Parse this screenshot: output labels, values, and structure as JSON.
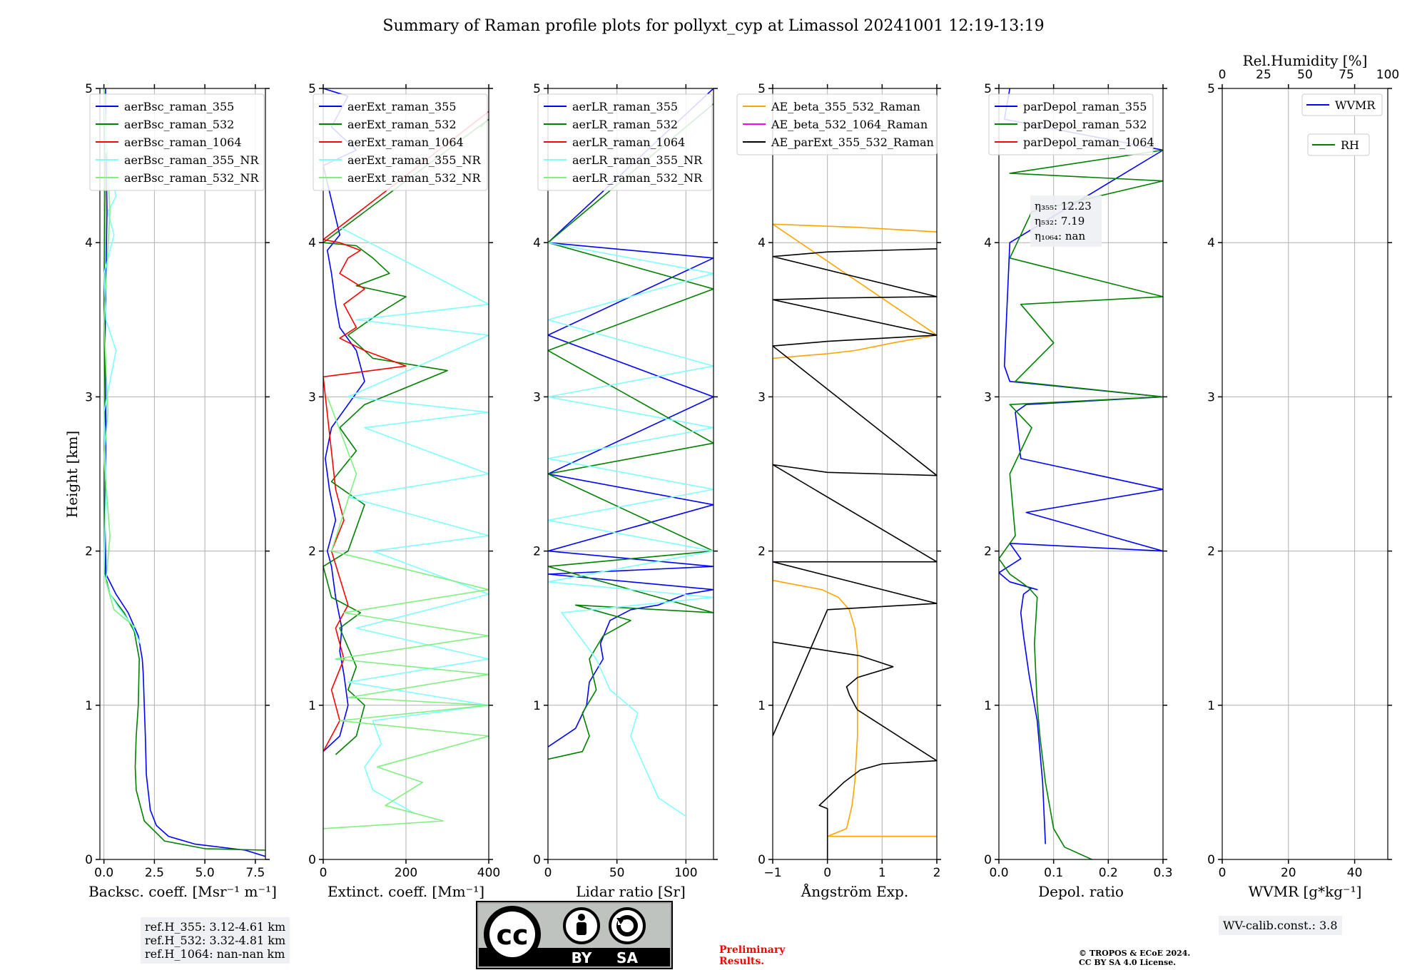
{
  "figure": {
    "title": "Summary of Raman profile plots for pollyxt_cyp at Limassol 20241001 12:19-13:19",
    "ylabel": "Height [km]",
    "ref_heights": [
      "ref.H_355: 3.12-4.61 km",
      "ref.H_532: 3.32-4.81 km",
      "ref.H_1064: nan-nan km"
    ],
    "wv_calib": "WV-calib.const.: 3.8",
    "preliminary": [
      "Preliminary",
      "Results."
    ],
    "copyright": [
      "© TROPOS & ECoE 2024.",
      "CC BY SA 4.0 License."
    ],
    "license_badge": {
      "icon": "cc-by-sa-icon",
      "left_label": "BY",
      "right_label": "SA",
      "cc_text": "cc"
    },
    "colors": {
      "blue": "#0000ff",
      "green": "#008000",
      "red": "#ff0000",
      "cyan": "#7fffff",
      "lightgreen": "#80f080",
      "orange": "#ffa500",
      "magenta": "#ff00ff",
      "black": "#000000"
    }
  },
  "chart_data": [
    {
      "type": "line",
      "id": "bsc",
      "xlabel": "Backsc. coeff. [Msr⁻¹ m⁻¹]",
      "xlim": [
        -0.2,
        8.0
      ],
      "xticks": [
        0.0,
        2.5,
        5.0,
        7.5
      ],
      "xticklabels": [
        "0.0",
        "2.5",
        "5.0",
        "7.5"
      ],
      "ylim": [
        0,
        5
      ],
      "yticks": [
        0,
        1,
        2,
        3,
        4,
        5
      ],
      "yticklabels": [
        "0",
        "1",
        "2",
        "3",
        "4",
        "5"
      ],
      "legend": "upper",
      "series": [
        {
          "name": "aerBsc_raman_355",
          "color": "#0000ff",
          "x": [
            8.0,
            7.0,
            4.5,
            3.2,
            2.6,
            2.3,
            2.1,
            2.05,
            2.0,
            1.95,
            1.9,
            1.7,
            1.2,
            0.6,
            0.1,
            0.05,
            0.1,
            0.05,
            0.1,
            0.15,
            0.1,
            0.08
          ],
          "y": [
            0.02,
            0.06,
            0.1,
            0.15,
            0.22,
            0.32,
            0.55,
            0.8,
            1.0,
            1.2,
            1.3,
            1.45,
            1.6,
            1.72,
            1.85,
            2.2,
            2.8,
            3.3,
            3.8,
            4.2,
            4.7,
            5.0
          ]
        },
        {
          "name": "aerBsc_raman_532",
          "color": "#008000",
          "x": [
            8.0,
            5.0,
            3.0,
            2.0,
            1.6,
            1.55,
            1.6,
            1.7,
            1.75,
            1.5,
            1.0,
            0.3,
            0.05,
            0.0,
            0.05,
            0.0,
            0.05,
            0.0
          ],
          "y": [
            0.06,
            0.07,
            0.12,
            0.25,
            0.45,
            0.6,
            0.8,
            1.0,
            1.3,
            1.48,
            1.6,
            1.72,
            1.85,
            2.4,
            3.0,
            3.6,
            4.3,
            5.0
          ]
        },
        {
          "name": "aerBsc_raman_1064",
          "color": "#ff0000",
          "x": [],
          "y": []
        },
        {
          "name": "aerBsc_raman_355_NR",
          "color": "#7fffff",
          "x": [
            1.8,
            1.4,
            0.8,
            0.3,
            0.0,
            0.1,
            0.0,
            0.6,
            0.1,
            0.0,
            0.5,
            0.2,
            0.6,
            0.1,
            0.0
          ],
          "y": [
            1.4,
            1.52,
            1.62,
            1.72,
            1.85,
            2.4,
            2.9,
            3.3,
            3.5,
            3.8,
            4.05,
            4.2,
            4.3,
            4.6,
            5.0
          ]
        },
        {
          "name": "aerBsc_raman_532_NR",
          "color": "#80f080",
          "x": [
            1.6,
            0.5,
            0.1,
            0.3,
            0.0,
            0.2,
            0.0,
            0.3,
            0.0
          ],
          "y": [
            1.5,
            1.62,
            1.8,
            2.1,
            2.6,
            2.9,
            3.5,
            4.2,
            5.0
          ]
        }
      ]
    },
    {
      "type": "line",
      "id": "ext",
      "xlabel": "Extinct. coeff. [Mm⁻¹]",
      "xlim": [
        0,
        400
      ],
      "xticks": [
        0,
        200,
        400
      ],
      "xticklabels": [
        "0",
        "200",
        "400"
      ],
      "ylim": [
        0,
        5
      ],
      "yticks": [
        0,
        1,
        2,
        3,
        4,
        5
      ],
      "yticklabels": [
        "0",
        "1",
        "2",
        "3",
        "4",
        "5"
      ],
      "legend": "upper",
      "series": [
        {
          "name": "aerExt_raman_355",
          "color": "#0000ff",
          "x": [
            0,
            40,
            60,
            50,
            40,
            45,
            30,
            20,
            10,
            30,
            15,
            5,
            20,
            60,
            100,
            80,
            40,
            30,
            20,
            10,
            40,
            0,
            80,
            20,
            60,
            0
          ],
          "y": [
            0.7,
            0.8,
            1.0,
            1.2,
            1.35,
            1.5,
            1.7,
            1.9,
            2.0,
            2.2,
            2.4,
            2.6,
            2.8,
            2.95,
            3.1,
            3.3,
            3.45,
            3.6,
            3.8,
            3.95,
            4.05,
            4.5,
            4.6,
            4.75,
            4.95,
            5.0
          ]
        },
        {
          "name": "aerExt_raman_532",
          "color": "#008000",
          "x": [
            30,
            80,
            100,
            60,
            80,
            40,
            90,
            20,
            0,
            60,
            100,
            20,
            80,
            40,
            100,
            300,
            120,
            60,
            140,
            200,
            80,
            160,
            120,
            80,
            0,
            400,
            380
          ],
          "y": [
            0.68,
            0.8,
            1.0,
            1.1,
            1.25,
            1.5,
            1.6,
            1.7,
            1.9,
            2.0,
            2.3,
            2.45,
            2.65,
            2.8,
            2.95,
            3.17,
            3.25,
            3.4,
            3.55,
            3.65,
            3.72,
            3.8,
            3.9,
            3.98,
            4.0,
            4.8,
            4.75
          ]
        },
        {
          "name": "aerExt_raman_1064",
          "color": "#ff0000",
          "x": [
            0,
            40,
            20,
            50,
            30,
            60,
            20,
            50,
            30,
            0,
            200,
            100,
            40,
            80,
            50,
            100,
            40,
            60,
            90,
            40,
            0,
            400
          ],
          "y": [
            0.7,
            0.9,
            1.1,
            1.3,
            1.5,
            1.65,
            2.0,
            2.2,
            2.4,
            3.13,
            3.2,
            3.3,
            3.38,
            3.45,
            3.6,
            3.7,
            3.8,
            3.9,
            3.95,
            4.0,
            4.02,
            4.85
          ]
        },
        {
          "name": "aerExt_raman_355_NR",
          "color": "#7fffff",
          "x": [
            220,
            120,
            100,
            140,
            120,
            400,
            60,
            400,
            80,
            400,
            120,
            400,
            60,
            400,
            100,
            400,
            60,
            400,
            80,
            400,
            40
          ],
          "y": [
            0.3,
            0.45,
            0.6,
            0.75,
            0.9,
            1.0,
            1.15,
            1.3,
            1.5,
            1.72,
            2.0,
            2.1,
            2.35,
            2.5,
            2.8,
            2.9,
            3.0,
            3.4,
            3.5,
            3.6,
            4.1
          ]
        },
        {
          "name": "aerExt_raman_532_NR",
          "color": "#80f080",
          "x": [
            0,
            290,
            150,
            240,
            130,
            400,
            40,
            400,
            60,
            400,
            30,
            400,
            50,
            400,
            20,
            80,
            10
          ],
          "y": [
            0.2,
            0.25,
            0.35,
            0.5,
            0.6,
            0.8,
            0.9,
            1.0,
            1.05,
            1.2,
            1.3,
            1.45,
            1.6,
            1.75,
            2.0,
            2.5,
            3.0
          ]
        }
      ]
    },
    {
      "type": "line",
      "id": "lr",
      "xlabel": "Lidar ratio [Sr]",
      "xlim": [
        0,
        120
      ],
      "xticks": [
        0,
        50,
        100
      ],
      "xticklabels": [
        "0",
        "50",
        "100"
      ],
      "ylim": [
        0,
        5
      ],
      "yticks": [
        0,
        1,
        2,
        3,
        4,
        5
      ],
      "yticklabels": [
        "0",
        "1",
        "2",
        "3",
        "4",
        "5"
      ],
      "legend": "upper",
      "series": [
        {
          "name": "aerLR_raman_355",
          "color": "#0000ff",
          "x": [
            0,
            20,
            28,
            30,
            40,
            38,
            45,
            60,
            80,
            100,
            120,
            0,
            120,
            0,
            120,
            0,
            120,
            0,
            120,
            0,
            120
          ],
          "y": [
            0.73,
            0.85,
            1.0,
            1.15,
            1.3,
            1.4,
            1.55,
            1.62,
            1.65,
            1.72,
            1.75,
            1.85,
            1.9,
            2.0,
            2.3,
            2.5,
            3.0,
            3.4,
            3.9,
            4.0,
            5.0
          ]
        },
        {
          "name": "aerLR_raman_532",
          "color": "#008000",
          "x": [
            0,
            25,
            30,
            25,
            35,
            30,
            40,
            60,
            20,
            120,
            0,
            120,
            0,
            120,
            0,
            120,
            0,
            120
          ],
          "y": [
            0.65,
            0.7,
            0.8,
            0.95,
            1.1,
            1.3,
            1.45,
            1.55,
            1.65,
            1.6,
            1.9,
            2.0,
            2.5,
            2.7,
            3.3,
            3.7,
            4.0,
            4.9
          ]
        },
        {
          "name": "aerLR_raman_1064",
          "color": "#ff0000",
          "x": [],
          "y": []
        },
        {
          "name": "aerLR_raman_355_NR",
          "color": "#7fffff",
          "x": [
            100,
            80,
            70,
            60,
            65,
            45,
            35,
            10,
            120,
            0,
            120,
            0,
            120,
            0,
            120,
            0,
            120,
            0,
            120,
            0
          ],
          "y": [
            0.28,
            0.4,
            0.6,
            0.8,
            0.95,
            1.1,
            1.3,
            1.6,
            1.7,
            1.8,
            2.0,
            2.2,
            2.4,
            2.6,
            2.8,
            3.0,
            3.2,
            3.5,
            3.8,
            4.0
          ]
        },
        {
          "name": "aerLR_raman_532_NR",
          "color": "#80f080",
          "x": [],
          "y": []
        }
      ]
    },
    {
      "type": "line",
      "id": "ae",
      "xlabel": "Ångström Exp.",
      "xlim": [
        -1,
        2
      ],
      "xticks": [
        -1,
        0,
        1,
        2
      ],
      "xticklabels": [
        "−1",
        "0",
        "1",
        "2"
      ],
      "ylim": [
        0,
        5
      ],
      "yticks": [
        0,
        1,
        2,
        3,
        4,
        5
      ],
      "yticklabels": [
        "0",
        "1",
        "2",
        "3",
        "4",
        "5"
      ],
      "legend": "upper",
      "series": [
        {
          "name": "AE_beta_355_532_Raman",
          "color": "#ffa500",
          "x": [
            2.0,
            0.5,
            0.0,
            0.35,
            0.45,
            0.5,
            0.55,
            0.55,
            0.55,
            0.5,
            0.4,
            0.2,
            -0.1,
            -1.0,
            -1.0,
            0.0,
            0.5,
            1.2,
            2.0,
            -1.0,
            0.5,
            2.0
          ],
          "y": [
            0.15,
            0.15,
            0.15,
            0.2,
            0.35,
            0.5,
            0.8,
            1.1,
            1.35,
            1.5,
            1.62,
            1.7,
            1.75,
            1.81,
            3.25,
            3.28,
            3.3,
            3.35,
            3.4,
            4.12,
            4.1,
            4.07
          ]
        },
        {
          "name": "AE_beta_532_1064_Raman",
          "color": "#ff00ff",
          "x": [],
          "y": []
        },
        {
          "name": "AE_parExt_355_532_Raman",
          "color": "#000000",
          "x": [
            0,
            0,
            -0.15,
            0.0,
            0.3,
            0.6,
            1.0,
            2.0,
            0.55,
            0.5,
            0.4,
            0.35,
            0.55,
            1.2,
            0.6,
            -1.0,
            -1.0,
            0.0,
            2.0,
            -1.0,
            0.0,
            2.0,
            -1.0,
            0.0,
            2.0,
            -1.0,
            0.0,
            2.0,
            -1.0,
            0.0,
            2.0,
            -1.0,
            0.0,
            2.0
          ],
          "y": [
            0.0,
            0.33,
            0.35,
            0.4,
            0.5,
            0.58,
            0.62,
            0.64,
            0.97,
            1.0,
            1.07,
            1.12,
            1.18,
            1.25,
            1.32,
            1.41,
            0.8,
            1.62,
            1.66,
            1.93,
            1.93,
            1.93,
            2.56,
            2.51,
            2.49,
            3.33,
            3.36,
            3.4,
            3.63,
            3.64,
            3.65,
            3.91,
            3.94,
            3.96
          ]
        }
      ]
    },
    {
      "type": "line",
      "id": "depol",
      "xlabel": "Depol. ratio",
      "xlim": [
        0,
        0.3
      ],
      "xticks": [
        0.0,
        0.1,
        0.2,
        0.3
      ],
      "xticklabels": [
        "0.0",
        "0.1",
        "0.2",
        "0.3"
      ],
      "ylim": [
        0,
        5
      ],
      "yticks": [
        0,
        1,
        2,
        3,
        4,
        5
      ],
      "yticklabels": [
        "0",
        "1",
        "2",
        "3",
        "4",
        "5"
      ],
      "legend": "upper",
      "annotations": [
        "η₃₅₅: 12.23",
        "η₅₃₂: 7.19",
        "η₁₀₆₄: nan"
      ],
      "series": [
        {
          "name": "parDepol_raman_355",
          "color": "#0000ff",
          "x": [
            0.085,
            0.08,
            0.07,
            0.055,
            0.045,
            0.04,
            0.045,
            0.06,
            0.07,
            0.02,
            0.0,
            0.04,
            0.02,
            0.3,
            0.05,
            0.3,
            0.04,
            0.03,
            0.05,
            0.3,
            0.02,
            0.01,
            0.02,
            0.3,
            0.01,
            0.02
          ],
          "y": [
            0.1,
            0.5,
            0.9,
            1.2,
            1.45,
            1.6,
            1.72,
            1.76,
            1.75,
            1.8,
            1.86,
            1.95,
            2.05,
            2.0,
            2.25,
            2.4,
            2.6,
            2.9,
            2.95,
            3.0,
            3.1,
            3.2,
            4.0,
            4.6,
            4.8,
            5.0
          ]
        },
        {
          "name": "parDepol_raman_532",
          "color": "#008000",
          "x": [
            0.17,
            0.12,
            0.1,
            0.085,
            0.075,
            0.07,
            0.065,
            0.07,
            0.055,
            0.04,
            0.02,
            0.0,
            0.03,
            0.02,
            0.06,
            0.02,
            0.3,
            0.03,
            0.1,
            0.04,
            0.3,
            0.02,
            0.06,
            0.3,
            0.02,
            0.3
          ],
          "y": [
            0.0,
            0.08,
            0.2,
            0.5,
            0.8,
            1.0,
            1.4,
            1.7,
            1.76,
            1.8,
            1.85,
            1.95,
            2.1,
            2.5,
            2.8,
            2.95,
            3.0,
            3.1,
            3.35,
            3.6,
            3.65,
            3.9,
            4.2,
            4.4,
            4.45,
            4.6
          ]
        },
        {
          "name": "parDepol_raman_1064",
          "color": "#ff0000",
          "x": [],
          "y": []
        }
      ]
    },
    {
      "type": "line",
      "id": "wv",
      "xlabel": "WVMR [g*kg⁻¹]",
      "xlim": [
        0,
        50
      ],
      "xticks": [
        0,
        20,
        40
      ],
      "xticklabels": [
        "0",
        "20",
        "40"
      ],
      "x2label": "Rel.Humidity [%]",
      "x2lim": [
        0,
        100
      ],
      "x2ticks": [
        0,
        25,
        50,
        75,
        100
      ],
      "x2ticklabels": [
        "0",
        "25",
        "50",
        "75",
        "100"
      ],
      "ylim": [
        0,
        5
      ],
      "yticks": [
        0,
        1,
        2,
        3,
        4,
        5
      ],
      "yticklabels": [
        "0",
        "1",
        "2",
        "3",
        "4",
        "5"
      ],
      "legend": "upper-right",
      "series": [
        {
          "name": "WVMR",
          "color": "#0000ff",
          "x": [],
          "y": []
        },
        {
          "name": "RH",
          "color": "#008000",
          "x": [],
          "y": []
        }
      ]
    }
  ]
}
